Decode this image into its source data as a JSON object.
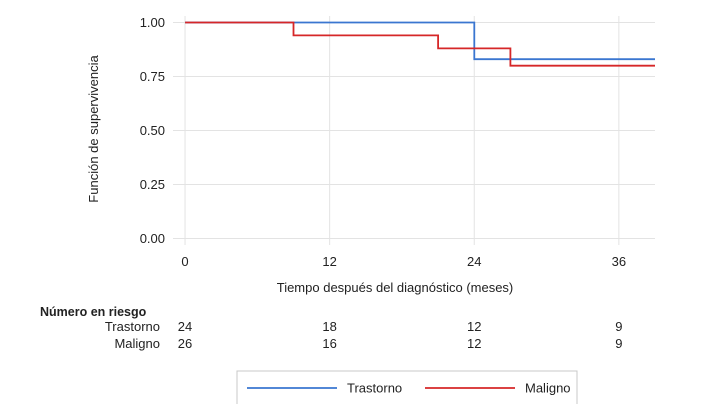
{
  "chart_data": {
    "type": "line",
    "step": true,
    "xlabel": "Tiempo después del diagnóstico (meses)",
    "ylabel": "Función de supervivencia",
    "xlim": [
      -1,
      39
    ],
    "ylim": [
      -0.03,
      1.03
    ],
    "x_ticks": [
      {
        "value": 0,
        "label": "0"
      },
      {
        "value": 12,
        "label": "12"
      },
      {
        "value": 24,
        "label": "24"
      },
      {
        "value": 36,
        "label": "36"
      }
    ],
    "y_ticks": [
      {
        "value": 0.0,
        "label": "0.00"
      },
      {
        "value": 0.25,
        "label": "0.25"
      },
      {
        "value": 0.5,
        "label": "0.50"
      },
      {
        "value": 0.75,
        "label": "0.75"
      },
      {
        "value": 1.0,
        "label": "1.00"
      }
    ],
    "grid": true,
    "legend_position": "bottom",
    "series": [
      {
        "name": "Trastorno",
        "color": "#3a76d0",
        "points": [
          [
            0,
            1.0
          ],
          [
            24,
            1.0
          ],
          [
            24,
            0.83
          ],
          [
            40,
            0.83
          ]
        ]
      },
      {
        "name": "Maligno",
        "color": "#d62728",
        "points": [
          [
            0,
            1.0
          ],
          [
            9,
            1.0
          ],
          [
            9,
            0.94
          ],
          [
            21,
            0.94
          ],
          [
            21,
            0.88
          ],
          [
            27,
            0.88
          ],
          [
            27,
            0.8
          ],
          [
            40,
            0.8
          ]
        ]
      }
    ],
    "risk_table": {
      "title": "Número en riesgo",
      "times": [
        0,
        12,
        24,
        36
      ],
      "rows": [
        {
          "label": "Trastorno",
          "values": [
            "24",
            "18",
            "12",
            "9"
          ]
        },
        {
          "label": "Maligno",
          "values": [
            "26",
            "16",
            "12",
            "9"
          ]
        }
      ]
    }
  }
}
